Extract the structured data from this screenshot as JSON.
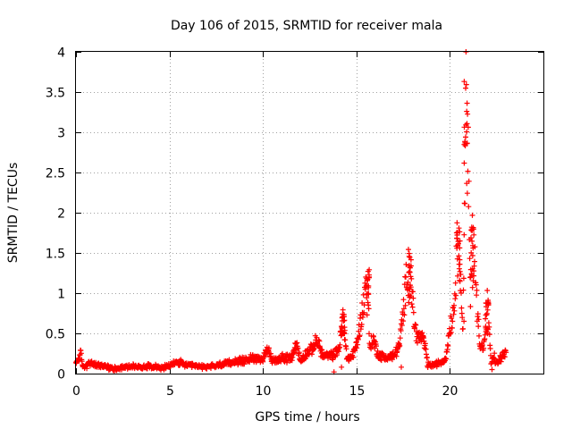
{
  "chart_data": {
    "type": "scatter",
    "title": "Day 106 of 2015, SRMTID for receiver mala",
    "xlabel": "GPS time / hours",
    "ylabel": "SRMTID / TECUs",
    "xlim": [
      0,
      25
    ],
    "ylim": [
      0,
      4
    ],
    "xticks": [
      "0",
      "5",
      "10",
      "15",
      "20"
    ],
    "yticks": [
      "0",
      "0.5",
      "1",
      "1.5",
      "2",
      "2.5",
      "3",
      "3.5",
      "4"
    ],
    "grid": true,
    "marker": "+",
    "color": "#ff0000",
    "series": [
      {
        "name": "SRMTID",
        "anchors": {
          "x": [
            0.0,
            0.15,
            0.25,
            0.35,
            0.5,
            0.7,
            1.0,
            1.5,
            2.0,
            2.5,
            3.0,
            3.5,
            4.0,
            4.5,
            5.0,
            5.3,
            5.6,
            6.0,
            6.5,
            7.0,
            7.5,
            8.0,
            8.5,
            9.0,
            9.5,
            10.0,
            10.3,
            10.5,
            11.0,
            11.5,
            11.8,
            12.0,
            12.3,
            12.6,
            12.9,
            13.2,
            13.6,
            13.9,
            14.1,
            14.3,
            14.5,
            14.8,
            15.0,
            15.2,
            15.4,
            15.6,
            15.7,
            15.9,
            16.2,
            16.6,
            17.0,
            17.3,
            17.5,
            17.7,
            17.85,
            17.95,
            18.1,
            18.3,
            18.5,
            18.7,
            18.8,
            19.0,
            19.3,
            19.6,
            19.8,
            20.0,
            20.15,
            20.3,
            20.45,
            20.6,
            20.7,
            20.8,
            20.85,
            20.9,
            21.0,
            21.05,
            21.1,
            21.2,
            21.3,
            21.4,
            21.6,
            21.8,
            22.0,
            22.1,
            22.2,
            22.35,
            22.5,
            22.8,
            23.0
          ],
          "y": [
            0.12,
            0.2,
            0.25,
            0.1,
            0.08,
            0.13,
            0.11,
            0.09,
            0.06,
            0.08,
            0.09,
            0.08,
            0.1,
            0.07,
            0.09,
            0.14,
            0.13,
            0.1,
            0.09,
            0.08,
            0.1,
            0.12,
            0.15,
            0.16,
            0.2,
            0.18,
            0.3,
            0.15,
            0.2,
            0.18,
            0.38,
            0.15,
            0.25,
            0.3,
            0.42,
            0.22,
            0.22,
            0.25,
            0.35,
            0.75,
            0.18,
            0.22,
            0.35,
            0.6,
            0.9,
            1.3,
            0.35,
            0.42,
            0.22,
            0.2,
            0.22,
            0.35,
            0.75,
            1.25,
            1.5,
            1.1,
            0.6,
            0.45,
            0.45,
            0.32,
            0.12,
            0.1,
            0.12,
            0.15,
            0.2,
            0.6,
            0.7,
            1.1,
            2.0,
            0.9,
            0.6,
            2.5,
            3.8,
            3.2,
            2.4,
            1.5,
            0.9,
            1.9,
            1.6,
            1.0,
            0.4,
            0.3,
            0.9,
            0.6,
            0.1,
            0.22,
            0.12,
            0.22,
            0.25
          ]
        },
        "outliers": [
          [
            13.8,
            0.02
          ],
          [
            14.2,
            0.08
          ],
          [
            17.4,
            0.08
          ],
          [
            20.75,
            0.65
          ],
          [
            22.25,
            0.05
          ]
        ]
      }
    ]
  }
}
